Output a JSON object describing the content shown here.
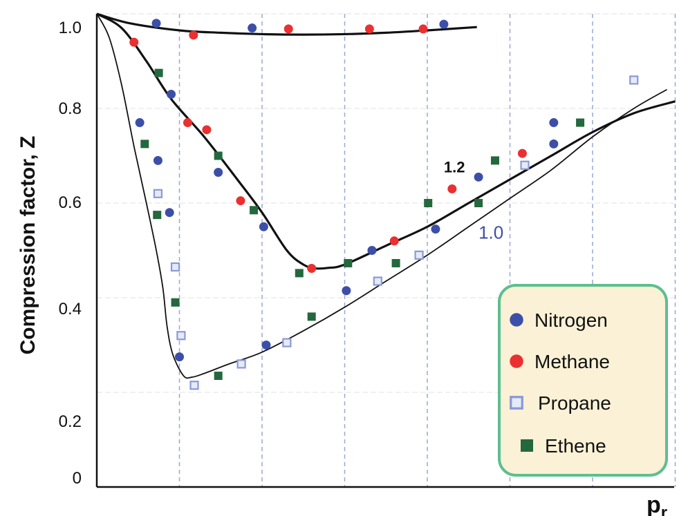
{
  "chart_data": {
    "type": "scatter",
    "title": "",
    "xlabel": "p",
    "xlabel_subscript": "r",
    "ylabel": "Compression factor, Z",
    "ylim": [
      0,
      1.0
    ],
    "y_ticks": [
      "0",
      "0.2",
      "0.4",
      "0.6",
      "0.8",
      "1.0"
    ],
    "x_range": [
      0,
      7
    ],
    "grid": "dashed vertical lines at each x unit, faint horizontal lines",
    "legend_position": "bottom-right",
    "legend": [
      {
        "label": "Nitrogen",
        "marker": "circle",
        "color": "#3c4fa8"
      },
      {
        "label": "Methane",
        "marker": "circle",
        "color": "#ea3030"
      },
      {
        "label": "Propane",
        "marker": "open-square",
        "color": "#8a9ad6"
      },
      {
        "label": "Ethene",
        "marker": "square",
        "color": "#24683d"
      }
    ],
    "curve_labels": [
      {
        "text": "1.2",
        "x": 4.2,
        "y": 0.665,
        "color": "#111111"
      },
      {
        "text": "1.0",
        "x": 4.62,
        "y": 0.525,
        "color": "#3c4fa8"
      }
    ],
    "curves": [
      {
        "points": [
          [
            0,
            1.0
          ],
          [
            0.4,
            0.98
          ],
          [
            1,
            0.965
          ],
          [
            1.5,
            0.96
          ],
          [
            2,
            0.957
          ],
          [
            2.5,
            0.956
          ],
          [
            3,
            0.957
          ],
          [
            3.5,
            0.96
          ],
          [
            4,
            0.965
          ],
          [
            4.6,
            0.972
          ]
        ]
      },
      {
        "points": [
          [
            0,
            1.0
          ],
          [
            0.3,
            0.97
          ],
          [
            0.6,
            0.9
          ],
          [
            0.9,
            0.82
          ],
          [
            1.3,
            0.74
          ],
          [
            1.7,
            0.65
          ],
          [
            2,
            0.58
          ],
          [
            2.3,
            0.5
          ],
          [
            2.5,
            0.47
          ],
          [
            2.65,
            0.462
          ],
          [
            2.8,
            0.463
          ],
          [
            3,
            0.47
          ],
          [
            3.5,
            0.51
          ],
          [
            4,
            0.55
          ],
          [
            4.5,
            0.6
          ],
          [
            5,
            0.65
          ],
          [
            5.5,
            0.7
          ],
          [
            6,
            0.75
          ],
          [
            6.5,
            0.79
          ],
          [
            7,
            0.815
          ]
        ]
      },
      {
        "points": [
          [
            0,
            1.0
          ],
          [
            0.15,
            0.95
          ],
          [
            0.3,
            0.85
          ],
          [
            0.45,
            0.72
          ],
          [
            0.6,
            0.6
          ],
          [
            0.72,
            0.5
          ],
          [
            0.8,
            0.42
          ],
          [
            0.85,
            0.34
          ],
          [
            0.92,
            0.28
          ],
          [
            1.05,
            0.235
          ],
          [
            1.15,
            0.232
          ],
          [
            1.3,
            0.24
          ],
          [
            1.6,
            0.26
          ],
          [
            2,
            0.285
          ],
          [
            2.5,
            0.33
          ],
          [
            3,
            0.38
          ],
          [
            3.5,
            0.435
          ],
          [
            4,
            0.49
          ],
          [
            4.5,
            0.55
          ],
          [
            5,
            0.61
          ],
          [
            5.5,
            0.67
          ],
          [
            6,
            0.74
          ],
          [
            6.5,
            0.8
          ],
          [
            6.9,
            0.84
          ]
        ]
      }
    ],
    "series": [
      {
        "name": "Nitrogen",
        "points": [
          [
            0.72,
            0.98
          ],
          [
            1.88,
            0.97
          ],
          [
            4.2,
            0.978
          ],
          [
            0.52,
            0.77
          ],
          [
            0.9,
            0.83
          ],
          [
            0.74,
            0.69
          ],
          [
            0.88,
            0.58
          ],
          [
            1.47,
            0.665
          ],
          [
            2.02,
            0.55
          ],
          [
            1.0,
            0.275
          ],
          [
            2.05,
            0.3
          ],
          [
            3.02,
            0.415
          ],
          [
            3.33,
            0.5
          ],
          [
            4.1,
            0.545
          ],
          [
            4.62,
            0.655
          ],
          [
            5.53,
            0.725
          ],
          [
            5.53,
            0.77
          ]
        ]
      },
      {
        "name": "Methane",
        "points": [
          [
            2.32,
            0.968
          ],
          [
            3.3,
            0.968
          ],
          [
            3.95,
            0.968
          ],
          [
            0.45,
            0.94
          ],
          [
            1.17,
            0.955
          ],
          [
            1.1,
            0.77
          ],
          [
            1.33,
            0.755
          ],
          [
            1.74,
            0.605
          ],
          [
            2.6,
            0.462
          ],
          [
            3.6,
            0.52
          ],
          [
            4.3,
            0.63
          ],
          [
            5.15,
            0.705
          ]
        ]
      },
      {
        "name": "Propane",
        "points": [
          [
            0.74,
            0.62
          ],
          [
            0.95,
            0.465
          ],
          [
            1.02,
            0.32
          ],
          [
            1.18,
            0.215
          ],
          [
            1.75,
            0.26
          ],
          [
            2.3,
            0.305
          ],
          [
            3.4,
            0.435
          ],
          [
            3.9,
            0.49
          ],
          [
            5.18,
            0.68
          ],
          [
            6.5,
            0.86
          ]
        ]
      },
      {
        "name": "Ethene",
        "points": [
          [
            0.75,
            0.875
          ],
          [
            0.58,
            0.725
          ],
          [
            0.73,
            0.575
          ],
          [
            0.95,
            0.39
          ],
          [
            1.47,
            0.7
          ],
          [
            1.9,
            0.585
          ],
          [
            2.45,
            0.452
          ],
          [
            3.04,
            0.473
          ],
          [
            3.62,
            0.473
          ],
          [
            2.6,
            0.36
          ],
          [
            1.47,
            0.235
          ],
          [
            4.01,
            0.6
          ],
          [
            4.62,
            0.6
          ],
          [
            4.82,
            0.69
          ],
          [
            5.85,
            0.77
          ]
        ]
      }
    ]
  }
}
